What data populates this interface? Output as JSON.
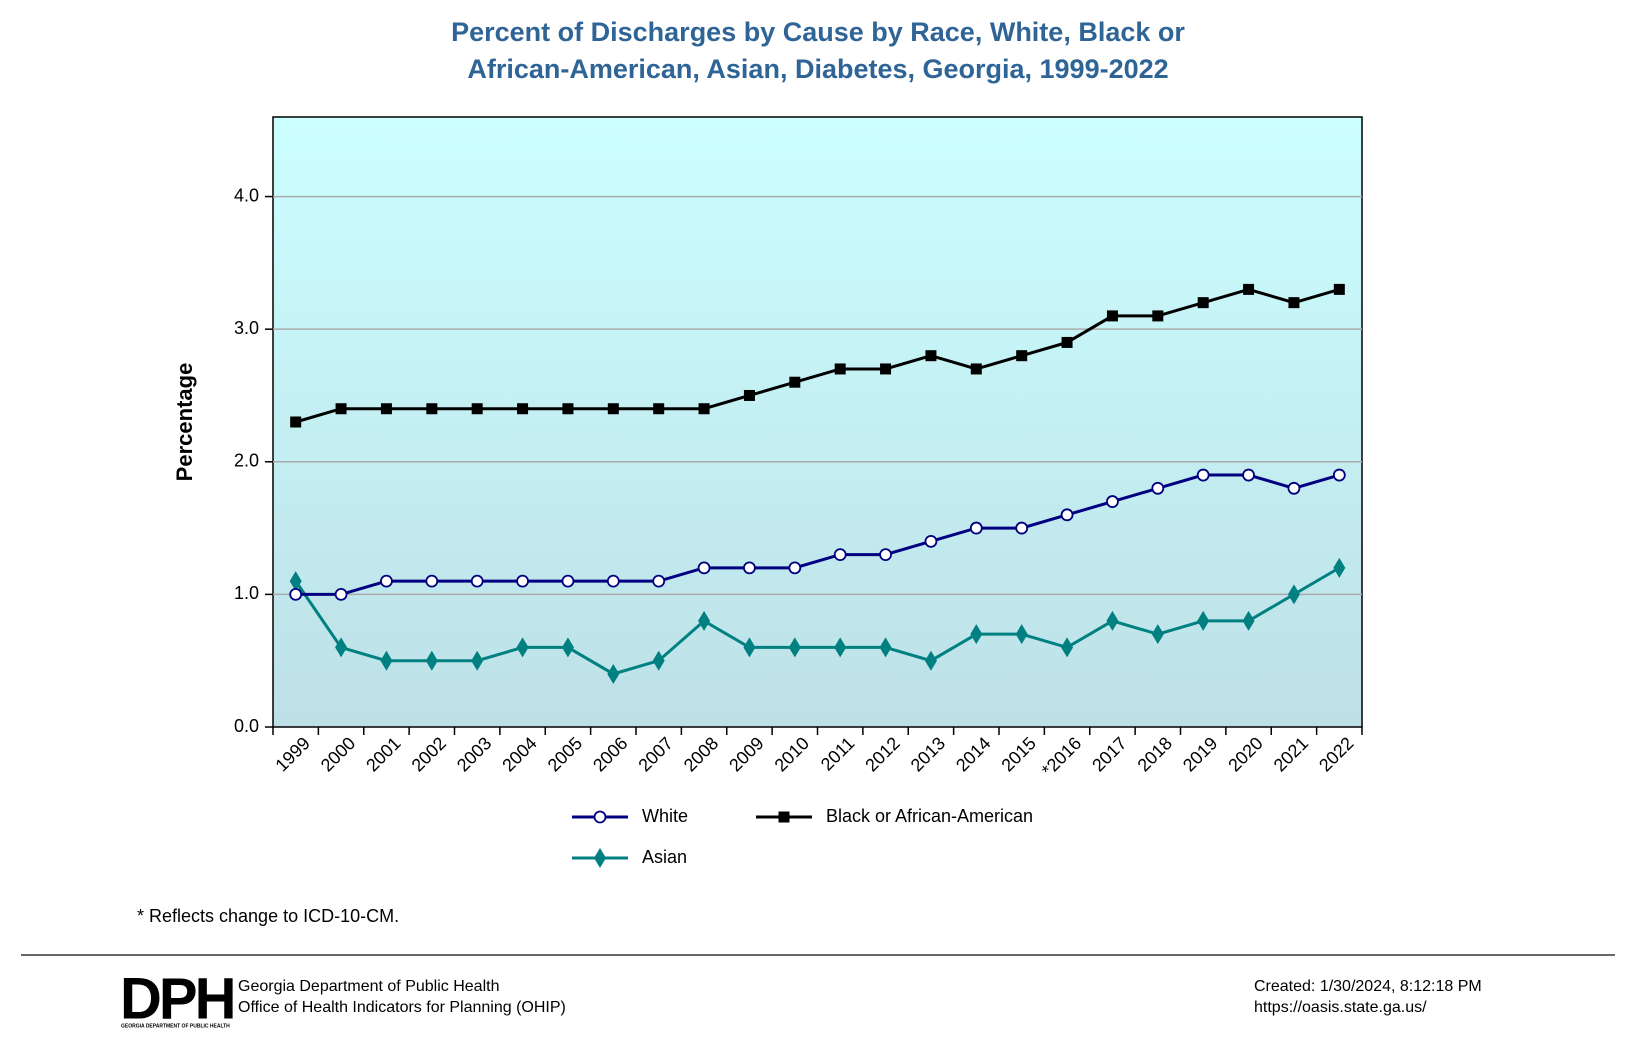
{
  "chart_data": {
    "type": "line",
    "title": [
      "Percent of Discharges by Cause by Race, White, Black or",
      "African-American, Asian, Diabetes, Georgia, 1999-2022"
    ],
    "y_label": "Percentage",
    "categories": [
      "1999",
      "2000",
      "2001",
      "2002",
      "2003",
      "2004",
      "2005",
      "2006",
      "2007",
      "2008",
      "2009",
      "2010",
      "2011",
      "2012",
      "2013",
      "2014",
      "2015",
      "*2016",
      "2017",
      "2018",
      "2019",
      "2020",
      "2021",
      "2022"
    ],
    "series": [
      {
        "name": "White",
        "color": "#000080",
        "marker": "circle",
        "values": [
          1.0,
          1.0,
          1.1,
          1.1,
          1.1,
          1.1,
          1.1,
          1.1,
          1.1,
          1.2,
          1.2,
          1.2,
          1.3,
          1.3,
          1.4,
          1.5,
          1.5,
          1.6,
          1.7,
          1.8,
          1.9,
          1.9,
          1.8,
          1.9
        ]
      },
      {
        "name": "Black or African-American",
        "color": "#000000",
        "marker": "square",
        "values": [
          2.3,
          2.4,
          2.4,
          2.4,
          2.4,
          2.4,
          2.4,
          2.4,
          2.4,
          2.4,
          2.5,
          2.6,
          2.7,
          2.7,
          2.8,
          2.7,
          2.8,
          2.9,
          3.1,
          3.1,
          3.2,
          3.3,
          3.2,
          3.3
        ]
      },
      {
        "name": "Asian",
        "color": "#008080",
        "marker": "diamond",
        "values": [
          1.1,
          0.6,
          0.5,
          0.5,
          0.5,
          0.6,
          0.6,
          0.4,
          0.5,
          0.8,
          0.6,
          0.6,
          0.6,
          0.6,
          0.5,
          0.7,
          0.7,
          0.6,
          0.8,
          0.7,
          0.8,
          0.8,
          1.0,
          1.2
        ]
      }
    ],
    "ylim": [
      0,
      4.6
    ],
    "yticks": [
      {
        "value": 0,
        "label": "0.0"
      },
      {
        "value": 1,
        "label": "1.0"
      },
      {
        "value": 2,
        "label": "2.0"
      },
      {
        "value": 3,
        "label": "3.0"
      },
      {
        "value": 4,
        "label": "4.0"
      }
    ],
    "grid": true,
    "footnote": "* Reflects change to ICD-10-CM."
  },
  "footer": {
    "logo": "DPH",
    "logo_caption": "GEORGIA DEPARTMENT OF PUBLIC HEALTH",
    "org": [
      "Georgia Department of Public Health",
      "Office of Health Indicators for Planning (OHIP)"
    ],
    "meta": [
      "Created: 1/30/2024, 8:12:18 PM",
      "https://oasis.state.ga.us/"
    ]
  }
}
